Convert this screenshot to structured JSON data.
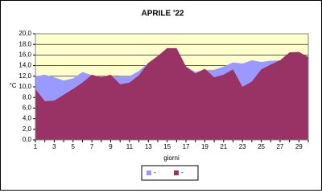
{
  "chart_data": {
    "type": "area",
    "title": "APRILE '22",
    "y_label": "°C",
    "x_label": "giorni",
    "categories": [
      "1",
      null,
      "3",
      null,
      "5",
      null,
      "7",
      null,
      "9",
      null,
      "11",
      null,
      "13",
      null,
      "15",
      null,
      "17",
      null,
      "19",
      null,
      "21",
      null,
      "23",
      null,
      "25",
      null,
      "27",
      null,
      "29",
      null
    ],
    "series": [
      {
        "name": "-",
        "color": "#9999ff",
        "values": [
          12.0,
          12.3,
          11.8,
          11.2,
          11.6,
          12.8,
          12.2,
          11.9,
          11.8,
          12.0,
          12.0,
          13.0,
          14.5,
          15.8,
          17.3,
          17.3,
          13.8,
          12.8,
          13.2,
          13.2,
          13.8,
          14.6,
          14.4,
          15.0,
          14.7,
          14.9,
          15.0,
          16.4,
          16.5,
          15.6
        ]
      },
      {
        "name": "-",
        "color": "#993366",
        "values": [
          9.6,
          7.3,
          7.4,
          8.5,
          9.6,
          10.8,
          12.3,
          11.8,
          12.3,
          10.5,
          10.8,
          12.2,
          14.5,
          15.8,
          17.3,
          17.3,
          13.8,
          12.5,
          13.4,
          11.8,
          12.3,
          13.3,
          10.0,
          11.0,
          13.3,
          14.2,
          15.0,
          16.5,
          16.6,
          15.6
        ]
      }
    ],
    "ylim": [
      0,
      20
    ],
    "yticks": [
      {
        "value": 0,
        "label": "0,0"
      },
      {
        "value": 2,
        "label": "2,0"
      },
      {
        "value": 4,
        "label": "4,0"
      },
      {
        "value": 6,
        "label": "6,0"
      },
      {
        "value": 8,
        "label": "8,0"
      },
      {
        "value": 10,
        "label": "10,0"
      },
      {
        "value": 12,
        "label": "12,0"
      },
      {
        "value": 14,
        "label": "14,0"
      },
      {
        "value": 16,
        "label": "16,0"
      },
      {
        "value": 18,
        "label": "18,0"
      },
      {
        "value": 20,
        "label": "20,0"
      }
    ],
    "grid": true,
    "background": "#ffffcc"
  }
}
